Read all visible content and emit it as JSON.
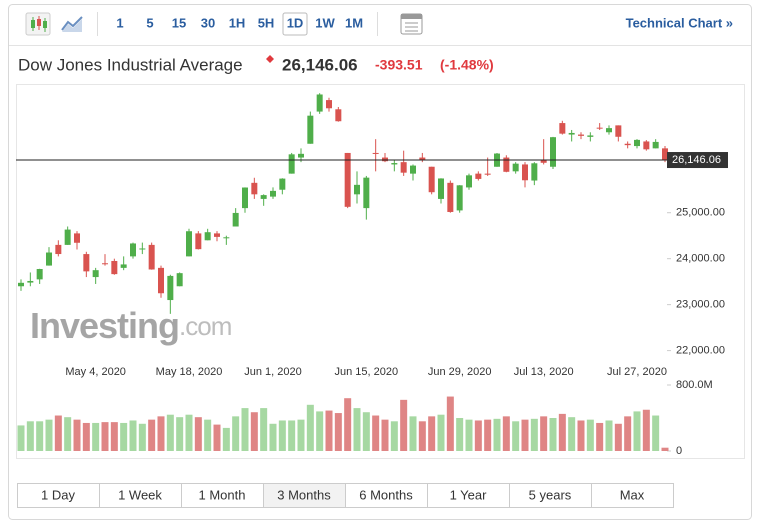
{
  "toolbar": {
    "intervals": [
      {
        "label": "1",
        "selected": false
      },
      {
        "label": "5",
        "selected": false
      },
      {
        "label": "15",
        "selected": false
      },
      {
        "label": "30",
        "selected": false
      },
      {
        "label": "1H",
        "selected": false
      },
      {
        "label": "5H",
        "selected": false
      },
      {
        "label": "1D",
        "selected": true
      },
      {
        "label": "1W",
        "selected": false
      },
      {
        "label": "1M",
        "selected": false
      }
    ],
    "link": "Technical Chart »"
  },
  "header": {
    "title": "Dow Jones Industrial Average",
    "change": "-393.51",
    "change_percent": "(-1.48%)"
  },
  "watermark": {
    "brand": "Investing",
    "suffix": ".com"
  },
  "ranges": [
    {
      "label": "1 Day",
      "selected": false
    },
    {
      "label": "1 Week",
      "selected": false
    },
    {
      "label": "1 Month",
      "selected": false
    },
    {
      "label": "3 Months",
      "selected": true
    },
    {
      "label": "6 Months",
      "selected": false
    },
    {
      "label": "1 Year",
      "selected": false
    },
    {
      "label": "5 years",
      "selected": false
    },
    {
      "label": "Max",
      "selected": false
    }
  ],
  "chart_data": {
    "type": "candlestick",
    "up_color": "#4fae4a",
    "down_color": "#d9534f",
    "volume_up_color": "#a6d8a2",
    "volume_down_color": "#df8585",
    "x": [
      "2020-04-22",
      "2020-04-23",
      "2020-04-24",
      "2020-04-27",
      "2020-04-28",
      "2020-04-29",
      "2020-04-30",
      "2020-05-01",
      "2020-05-04",
      "2020-05-05",
      "2020-05-06",
      "2020-05-07",
      "2020-05-08",
      "2020-05-11",
      "2020-05-12",
      "2020-05-13",
      "2020-05-14",
      "2020-05-15",
      "2020-05-18",
      "2020-05-19",
      "2020-05-20",
      "2020-05-21",
      "2020-05-22",
      "2020-05-26",
      "2020-05-27",
      "2020-05-28",
      "2020-05-29",
      "2020-06-01",
      "2020-06-02",
      "2020-06-03",
      "2020-06-04",
      "2020-06-05",
      "2020-06-08",
      "2020-06-09",
      "2020-06-10",
      "2020-06-11",
      "2020-06-12",
      "2020-06-15",
      "2020-06-16",
      "2020-06-17",
      "2020-06-18",
      "2020-06-19",
      "2020-06-22",
      "2020-06-23",
      "2020-06-24",
      "2020-06-25",
      "2020-06-26",
      "2020-06-29",
      "2020-06-30",
      "2020-07-01",
      "2020-07-02",
      "2020-07-06",
      "2020-07-07",
      "2020-07-08",
      "2020-07-09",
      "2020-07-10",
      "2020-07-13",
      "2020-07-14",
      "2020-07-15",
      "2020-07-16",
      "2020-07-17",
      "2020-07-20",
      "2020-07-21",
      "2020-07-22",
      "2020-07-23",
      "2020-07-24",
      "2020-07-27",
      "2020-07-28",
      "2020-07-29",
      "2020-07-30"
    ],
    "open": [
      23400,
      23480,
      23550,
      23850,
      24300,
      24300,
      24550,
      24100,
      23600,
      23900,
      23950,
      23800,
      24050,
      24200,
      24300,
      23800,
      23100,
      23400,
      24050,
      24550,
      24400,
      24550,
      24450,
      24700,
      25100,
      25650,
      25300,
      25350,
      25500,
      25850,
      26200,
      26500,
      27200,
      27450,
      27250,
      26300,
      25400,
      25100,
      26300,
      26200,
      26050,
      26100,
      25850,
      26200,
      26000,
      25300,
      25650,
      25050,
      25550,
      25850,
      25850,
      26000,
      26200,
      25900,
      26050,
      25700,
      26150,
      26000,
      26950,
      26700,
      26700,
      26650,
      26850,
      26750,
      26900,
      26500,
      26450,
      26550,
      26400,
      26400
    ],
    "high": [
      23550,
      23700,
      23780,
      24250,
      24400,
      24700,
      24600,
      24150,
      23800,
      24100,
      24000,
      24050,
      24350,
      24350,
      24350,
      23850,
      23650,
      23700,
      24650,
      24600,
      24650,
      24600,
      24500,
      25100,
      25550,
      25760,
      25400,
      25550,
      25750,
      26300,
      26400,
      27200,
      27600,
      27500,
      27300,
      26300,
      25900,
      25800,
      26600,
      26300,
      26150,
      26350,
      26050,
      26300,
      26000,
      25750,
      25700,
      25600,
      25850,
      25900,
      26200,
      26300,
      26250,
      26100,
      26100,
      26100,
      26600,
      26650,
      27000,
      26800,
      26750,
      26750,
      26950,
      26900,
      26900,
      26550,
      26600,
      26580,
      26600,
      26450
    ],
    "low": [
      23300,
      23400,
      23450,
      23850,
      24050,
      24300,
      24200,
      23600,
      23450,
      23850,
      23650,
      23750,
      24000,
      24100,
      23760,
      23150,
      22800,
      23400,
      24050,
      24200,
      24400,
      24380,
      24300,
      24700,
      25000,
      25300,
      25150,
      25300,
      25400,
      25850,
      26100,
      26500,
      27150,
      27200,
      26980,
      25100,
      25200,
      24850,
      25900,
      26100,
      25900,
      25800,
      25700,
      26100,
      25400,
      25200,
      25000,
      25000,
      25500,
      25700,
      25800,
      26000,
      25880,
      25850,
      25550,
      25600,
      26050,
      25950,
      26700,
      26550,
      26600,
      26550,
      26800,
      26700,
      26550,
      26400,
      26400,
      26350,
      26400,
      26100
    ],
    "close": [
      23475,
      23515,
      23775,
      24134,
      24101,
      24633,
      24346,
      23724,
      23750,
      23883,
      23664,
      23875,
      24331,
      24222,
      23765,
      23248,
      23625,
      23685,
      24597,
      24207,
      24576,
      24474,
      24465,
      24995,
      25548,
      25400,
      25383,
      25475,
      25742,
      26270,
      26281,
      27111,
      27572,
      27272,
      26990,
      25128,
      25606,
      25763,
      26290,
      26120,
      26080,
      25871,
      26025,
      26156,
      25446,
      25745,
      25016,
      25596,
      25813,
      25735,
      25827,
      26287,
      25890,
      26067,
      25706,
      26075,
      26086,
      26643,
      26720,
      26735,
      26672,
      26681,
      26840,
      26840,
      26652,
      26470,
      26584,
      26379,
      26540,
      26146.06
    ],
    "volume": [
      310000000,
      360000000,
      360000000,
      380000000,
      430000000,
      410000000,
      380000000,
      340000000,
      340000000,
      350000000,
      350000000,
      340000000,
      370000000,
      330000000,
      380000000,
      420000000,
      440000000,
      410000000,
      440000000,
      410000000,
      380000000,
      320000000,
      280000000,
      420000000,
      520000000,
      470000000,
      520000000,
      330000000,
      370000000,
      370000000,
      380000000,
      560000000,
      480000000,
      490000000,
      460000000,
      640000000,
      520000000,
      470000000,
      430000000,
      380000000,
      360000000,
      620000000,
      420000000,
      360000000,
      420000000,
      440000000,
      660000000,
      400000000,
      380000000,
      370000000,
      380000000,
      390000000,
      420000000,
      360000000,
      380000000,
      390000000,
      420000000,
      400000000,
      450000000,
      410000000,
      370000000,
      380000000,
      340000000,
      370000000,
      330000000,
      420000000,
      480000000,
      500000000,
      430000000,
      40000000
    ],
    "xticks": [
      {
        "value": "2020-05-04",
        "label": "May 4, 2020"
      },
      {
        "value": "2020-05-18",
        "label": "May 18, 2020"
      },
      {
        "value": "2020-06-01",
        "label": "Jun 1, 2020"
      },
      {
        "value": "2020-06-15",
        "label": "Jun 15, 2020"
      },
      {
        "value": "2020-06-29",
        "label": "Jun 29, 2020"
      },
      {
        "value": "2020-07-13",
        "label": "Jul 13, 2020"
      },
      {
        "value": "2020-07-27",
        "label": "Jul 27, 2020"
      }
    ],
    "ylim": [
      21600,
      27800
    ],
    "yticks": [
      {
        "value": 22000,
        "label": "22,000.00"
      },
      {
        "value": 23000,
        "label": "23,000.00"
      },
      {
        "value": 24000,
        "label": "24,000.00"
      },
      {
        "value": 25000,
        "label": "25,000.00"
      }
    ],
    "volume_ylim": [
      0,
      800000000
    ],
    "volume_yticks": [
      0,
      {
        "value": 800000000,
        "label": "800.0M"
      }
    ],
    "current": {
      "value": 26146.06,
      "label": "26,146.06"
    }
  }
}
